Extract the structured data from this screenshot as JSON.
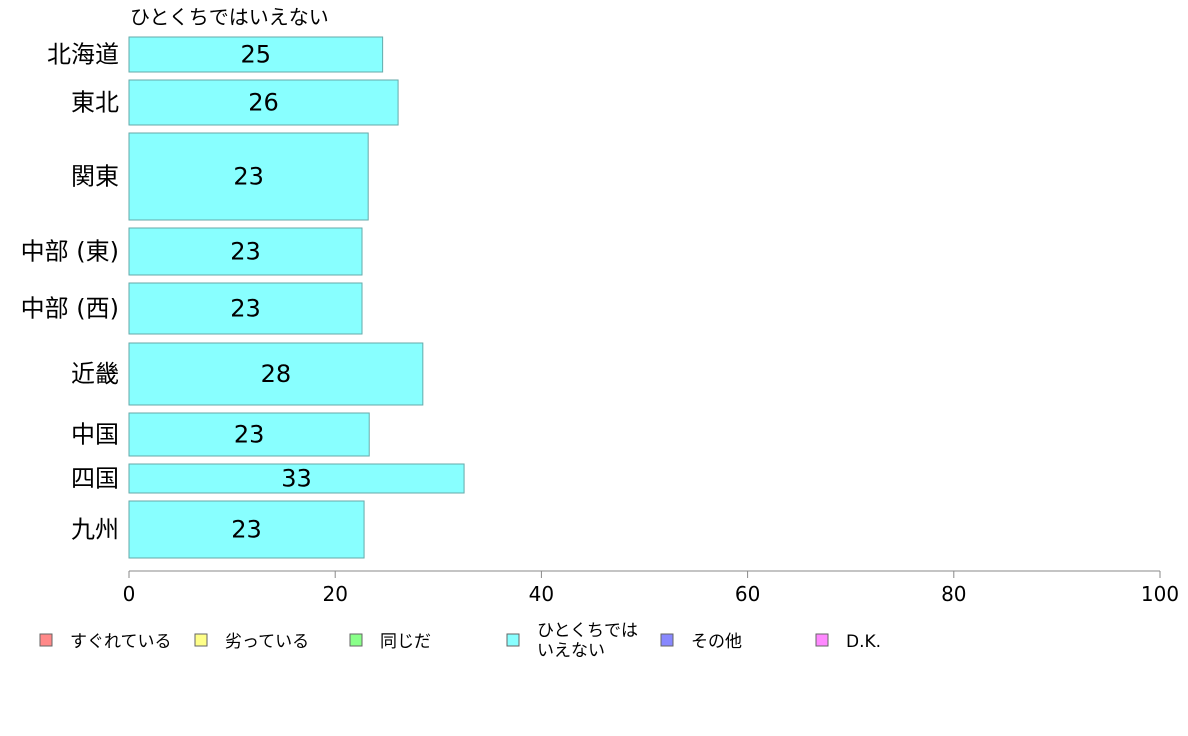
{
  "chart_data": {
    "type": "bar",
    "orientation": "horizontal",
    "series_title": "ひとくちではいえない",
    "categories": [
      "北海道",
      "東北",
      "関東",
      "中部 (東)",
      "中部 (西)",
      "近畿",
      "中国",
      "四国",
      "九州"
    ],
    "values": [
      24.6,
      26.1,
      23.2,
      22.6,
      22.6,
      28.5,
      23.3,
      32.5,
      22.8
    ],
    "value_labels": [
      "25",
      "26",
      "23",
      "23",
      "23",
      "28",
      "23",
      "33",
      "23"
    ],
    "xlim": [
      0,
      100
    ],
    "xticks": [
      "0",
      "20",
      "40",
      "60",
      "80",
      "100"
    ],
    "bar_color": "#88ffff",
    "bar_stroke": "#66aaaa",
    "legend": [
      {
        "label": "すぐれている",
        "color": "#ff8888"
      },
      {
        "label": "劣っている",
        "color": "#ffff88"
      },
      {
        "label": "同じだ",
        "color": "#88ff88"
      },
      {
        "label": "ひとくちでは\nいえない",
        "color": "#88ffff"
      },
      {
        "label": "その他",
        "color": "#8888ff"
      },
      {
        "label": "D.K.",
        "color": "#ff88ff"
      }
    ],
    "legend_placement": "bottom",
    "grid": false
  }
}
